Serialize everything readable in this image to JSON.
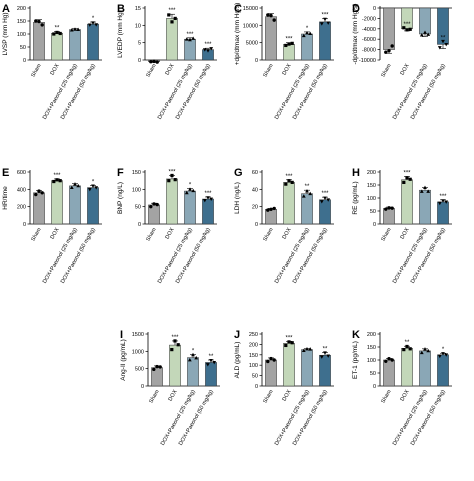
{
  "colors": [
    "#a3a3a3",
    "#c3d7b9",
    "#8aa7b6",
    "#3e6f8e"
  ],
  "chart_data": [
    {
      "type": "bar",
      "panel": "A",
      "ylabel": "LVSP (mm Hg)",
      "ylim": [
        0,
        200
      ],
      "yticks": [
        0,
        50,
        100,
        150,
        200
      ],
      "categories": [
        "Sham",
        "DOX",
        "DOX+Paeonol (25 mg/kg)",
        "DOX+Paeonol (50 mg/kg)"
      ],
      "values": [
        145,
        103,
        117,
        138
      ],
      "errors": [
        10,
        6,
        5,
        8
      ],
      "significance": [
        "",
        "**",
        "",
        "*"
      ],
      "points": [
        [
          150,
          148,
          135
        ],
        [
          100,
          106,
          102
        ],
        [
          115,
          118,
          117
        ],
        [
          135,
          143,
          136
        ]
      ]
    },
    {
      "type": "bar",
      "panel": "B",
      "ylabel": "LVEDP (mm Hg)",
      "ylim": [
        0,
        15
      ],
      "yticks": [
        0,
        5,
        10,
        15
      ],
      "categories": [
        "Sham",
        "DOX",
        "DOX+Paeonol (25 mg/kg)",
        "DOX+Paeonol (50 mg/kg)"
      ],
      "values": [
        -0.5,
        12,
        6,
        3
      ],
      "errors": [
        0.2,
        1.2,
        0.4,
        0.4
      ],
      "significance": [
        "",
        "***",
        "***",
        "***"
      ],
      "points": [
        [
          -0.5,
          -0.4,
          -0.6
        ],
        [
          13,
          11,
          12
        ],
        [
          6,
          5.8,
          6.2
        ],
        [
          3,
          2.7,
          3.3
        ]
      ]
    },
    {
      "type": "bar",
      "panel": "C",
      "ylabel": "+dp/dtmax (mm Hg/s)",
      "ylim": [
        0,
        15000
      ],
      "yticks": [
        0,
        5000,
        10000,
        15000
      ],
      "categories": [
        "Sham",
        "DOX",
        "DOX+Paeonol (25 mg/kg)",
        "DOX+Paeonol (50 mg/kg)"
      ],
      "values": [
        12500,
        4500,
        7500,
        11000
      ],
      "errors": [
        900,
        500,
        600,
        900
      ],
      "significance": [
        "",
        "***",
        "*",
        "***"
      ],
      "points": [
        [
          13000,
          12800,
          11500
        ],
        [
          4200,
          4600,
          4800
        ],
        [
          7000,
          7800,
          7600
        ],
        [
          10500,
          11800,
          10700
        ]
      ]
    },
    {
      "type": "bar",
      "panel": "D",
      "ylabel": "-dp/dtmax (mm Hg/s)",
      "ylim": [
        -10000,
        0
      ],
      "yticks": [
        -10000,
        -8000,
        -6000,
        -4000,
        -2000,
        0
      ],
      "categories": [
        "Sham",
        "DOX",
        "DOX+Paeonol (25 mg/kg)",
        "DOX+Paeonol (50 mg/kg)"
      ],
      "values": [
        -8000,
        -4000,
        -5000,
        -7000
      ],
      "errors": [
        700,
        400,
        500,
        800
      ],
      "significance": [
        "",
        "***",
        "",
        "**"
      ],
      "points": [
        [
          -8500,
          -8200,
          -7300
        ],
        [
          -3800,
          -4200,
          -4100
        ],
        [
          -5200,
          -4700,
          -5100
        ],
        [
          -7600,
          -6400,
          -7000
        ]
      ]
    },
    {
      "type": "bar",
      "panel": "E",
      "ylabel": "HR/time",
      "ylim": [
        0,
        600
      ],
      "yticks": [
        0,
        200,
        400,
        600
      ],
      "categories": [
        "Sham",
        "DOX",
        "DOX+Paeonol (25 mg/kg)",
        "DOX+Paeonol (50 mg/kg)"
      ],
      "values": [
        360,
        500,
        440,
        420
      ],
      "errors": [
        25,
        20,
        25,
        25
      ],
      "significance": [
        "",
        "***",
        "",
        "*"
      ],
      "points": [
        [
          340,
          380,
          360
        ],
        [
          490,
          510,
          500
        ],
        [
          420,
          460,
          440
        ],
        [
          400,
          440,
          420
        ]
      ]
    },
    {
      "type": "bar",
      "panel": "F",
      "ylabel": "BNP (ng/L)",
      "ylim": [
        0,
        150
      ],
      "yticks": [
        0,
        50,
        100,
        150
      ],
      "categories": [
        "Sham",
        "DOX",
        "DOX+Paeonol (25 mg/kg)",
        "DOX+Paeonol (50 mg/kg)"
      ],
      "values": [
        55,
        130,
        95,
        72
      ],
      "errors": [
        5,
        10,
        8,
        6
      ],
      "significance": [
        "",
        "***",
        "*",
        "***"
      ],
      "points": [
        [
          50,
          58,
          56
        ],
        [
          125,
          140,
          128
        ],
        [
          90,
          100,
          96
        ],
        [
          68,
          76,
          72
        ]
      ]
    },
    {
      "type": "bar",
      "panel": "G",
      "ylabel": "LDH (ng/L)",
      "ylim": [
        0,
        60
      ],
      "yticks": [
        0,
        20,
        40,
        60
      ],
      "categories": [
        "Sham",
        "DOX",
        "DOX+Paeonol (25 mg/kg)",
        "DOX+Paeonol (50 mg/kg)"
      ],
      "values": [
        17,
        48,
        35,
        28
      ],
      "errors": [
        1,
        3,
        4,
        3
      ],
      "significance": [
        "",
        "***",
        "**",
        "***"
      ],
      "points": [
        [
          16,
          17,
          18
        ],
        [
          46,
          50,
          48
        ],
        [
          32,
          38,
          35
        ],
        [
          26,
          30,
          28
        ]
      ]
    },
    {
      "type": "bar",
      "panel": "H",
      "ylabel": "RE (pg/mL)",
      "ylim": [
        0,
        200
      ],
      "yticks": [
        0,
        50,
        100,
        150,
        200
      ],
      "categories": [
        "Sham",
        "DOX",
        "DOX+Paeonol (25 mg/kg)",
        "DOX+Paeonol (50 mg/kg)"
      ],
      "values": [
        60,
        170,
        130,
        85
      ],
      "errors": [
        5,
        12,
        10,
        8
      ],
      "significance": [
        "",
        "***",
        "",
        "***"
      ],
      "points": [
        [
          57,
          62,
          61
        ],
        [
          160,
          178,
          172
        ],
        [
          125,
          140,
          125
        ],
        [
          80,
          90,
          85
        ]
      ]
    },
    {
      "type": "bar",
      "panel": "I",
      "ylabel": "Ang-II (pg/mL)",
      "ylim": [
        0,
        1500
      ],
      "yticks": [
        0,
        500,
        1000,
        1500
      ],
      "categories": [
        "Sham",
        "DOX",
        "DOX+Paeonol (25 mg/kg)",
        "DOX+Paeonol (50 mg/kg)"
      ],
      "values": [
        530,
        1180,
        820,
        680
      ],
      "errors": [
        50,
        120,
        90,
        70
      ],
      "significance": [
        "",
        "***",
        "*",
        "**"
      ],
      "points": [
        [
          480,
          560,
          550
        ],
        [
          1050,
          1300,
          1190
        ],
        [
          750,
          900,
          810
        ],
        [
          620,
          740,
          680
        ]
      ]
    },
    {
      "type": "bar",
      "panel": "J",
      "ylabel": "ALD (pg/mL)",
      "ylim": [
        0,
        250
      ],
      "yticks": [
        0,
        50,
        100,
        150,
        200,
        250
      ],
      "categories": [
        "Sham",
        "DOX",
        "DOX+Paeonol (25 mg/kg)",
        "DOX+Paeonol (50 mg/kg)"
      ],
      "values": [
        125,
        205,
        175,
        148
      ],
      "errors": [
        10,
        10,
        5,
        12
      ],
      "significance": [
        "",
        "***",
        "",
        "**"
      ],
      "points": [
        [
          118,
          132,
          125
        ],
        [
          195,
          212,
          208
        ],
        [
          170,
          178,
          177
        ],
        [
          140,
          160,
          145
        ]
      ]
    },
    {
      "type": "bar",
      "panel": "K",
      "ylabel": "ET-1 (pg/mL)",
      "ylim": [
        0,
        200
      ],
      "yticks": [
        0,
        50,
        100,
        150,
        200
      ],
      "categories": [
        "Sham",
        "DOX",
        "DOX+Paeonol (25 mg/kg)",
        "DOX+Paeonol (50 mg/kg)"
      ],
      "values": [
        100,
        145,
        135,
        120
      ],
      "errors": [
        6,
        8,
        8,
        6
      ],
      "significance": [
        "",
        "**",
        "",
        "*"
      ],
      "points": [
        [
          95,
          105,
          100
        ],
        [
          140,
          152,
          143
        ],
        [
          128,
          142,
          135
        ],
        [
          115,
          125,
          120
        ]
      ]
    }
  ]
}
